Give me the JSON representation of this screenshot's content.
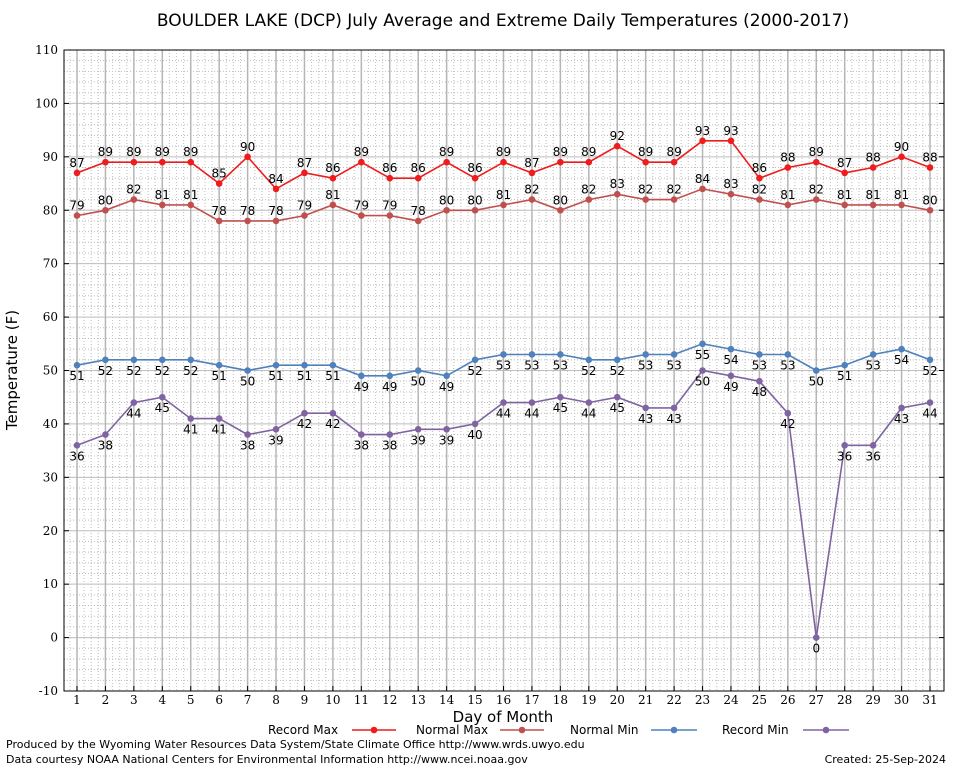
{
  "chart_data": {
    "type": "line",
    "title": "BOULDER LAKE (DCP) July Average and Extreme Daily Temperatures (2000-2017)",
    "xlabel": "Day of Month",
    "ylabel": "Temperature (F)",
    "x": [
      1,
      2,
      3,
      4,
      5,
      6,
      7,
      8,
      9,
      10,
      11,
      12,
      13,
      14,
      15,
      16,
      17,
      18,
      19,
      20,
      21,
      22,
      23,
      24,
      25,
      26,
      27,
      28,
      29,
      30,
      31
    ],
    "xlim": [
      1,
      31
    ],
    "ylim": [
      -10,
      110
    ],
    "yticks": [
      -10,
      0,
      10,
      20,
      30,
      40,
      50,
      60,
      70,
      80,
      90,
      100,
      110
    ],
    "grid": true,
    "legend_position": "bottom",
    "series": [
      {
        "name": "Record Max",
        "color": "#ee1c1c",
        "values": [
          87,
          89,
          89,
          89,
          89,
          85,
          90,
          84,
          87,
          86,
          89,
          86,
          86,
          89,
          86,
          89,
          87,
          89,
          89,
          92,
          89,
          89,
          93,
          93,
          86,
          88,
          89,
          87,
          88,
          90,
          88
        ]
      },
      {
        "name": "Normal Max",
        "color": "#c0504d",
        "values": [
          79,
          80,
          82,
          81,
          81,
          78,
          78,
          78,
          79,
          81,
          79,
          79,
          78,
          80,
          80,
          81,
          82,
          80,
          82,
          83,
          82,
          82,
          84,
          83,
          82,
          81,
          82,
          81,
          81,
          81,
          80
        ]
      },
      {
        "name": "Normal Min",
        "color": "#4f81bd",
        "values": [
          51,
          52,
          52,
          52,
          52,
          51,
          50,
          51,
          51,
          51,
          49,
          49,
          50,
          49,
          52,
          53,
          53,
          53,
          52,
          52,
          53,
          53,
          55,
          54,
          53,
          53,
          50,
          51,
          53,
          54,
          52
        ]
      },
      {
        "name": "Record Min",
        "color": "#8064a2",
        "values": [
          36,
          38,
          44,
          45,
          41,
          41,
          38,
          39,
          42,
          42,
          38,
          38,
          39,
          39,
          40,
          44,
          44,
          45,
          44,
          45,
          43,
          43,
          50,
          49,
          48,
          42,
          0,
          36,
          36,
          43,
          44
        ]
      }
    ]
  },
  "footer": {
    "produced_by": "Produced by the Wyoming Water Resources Data System/State Climate Office http://www.wrds.uwyo.edu",
    "courtesy": "Data courtesy NOAA National Centers for Environmental Information http://www.ncei.noaa.gov",
    "created": "Created:  25-Sep-2024"
  }
}
